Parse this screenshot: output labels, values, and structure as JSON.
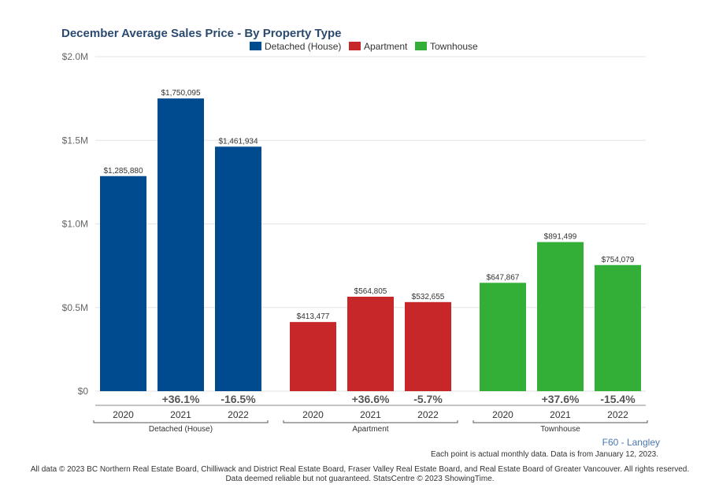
{
  "chart_data": {
    "type": "bar",
    "title": "December Average Sales Price - By Property Type",
    "xlabel": "",
    "ylabel": "",
    "ylim": [
      0,
      2000000
    ],
    "yticks": [
      {
        "value": 0,
        "label": "$0"
      },
      {
        "value": 500000,
        "label": "$0.5M"
      },
      {
        "value": 1000000,
        "label": "$1.0M"
      },
      {
        "value": 1500000,
        "label": "$1.5M"
      },
      {
        "value": 2000000,
        "label": "$2.0M"
      }
    ],
    "grid": true,
    "legend_position": "top",
    "categories": [
      "2020",
      "2021",
      "2022"
    ],
    "series": [
      {
        "name": "Detached (House)",
        "color": "#004a8f",
        "values": [
          1285880,
          1750095,
          1461934
        ],
        "value_labels": [
          "$1,285,880",
          "$1,750,095",
          "$1,461,934"
        ],
        "changes": [
          "",
          "+36.1%",
          "-16.5%"
        ]
      },
      {
        "name": "Apartment",
        "color": "#c8272a",
        "values": [
          413477,
          564805,
          532655
        ],
        "value_labels": [
          "$413,477",
          "$564,805",
          "$532,655"
        ],
        "changes": [
          "",
          "+36.6%",
          "-5.7%"
        ]
      },
      {
        "name": "Townhouse",
        "color": "#33ae37",
        "values": [
          647867,
          891499,
          754079
        ],
        "value_labels": [
          "$647,867",
          "$891,499",
          "$754,079"
        ],
        "changes": [
          "",
          "+37.6%",
          "-15.4%"
        ]
      }
    ]
  },
  "footer": {
    "region": "F60 - Langley",
    "note": "Each point is actual monthly data. Data is from January 12, 2023.",
    "copyright_line1": "All data © 2023 BC Northern Real Estate Board, Chilliwack and District Real Estate Board, Fraser Valley Real Estate Board, and Real Estate Board of Greater Vancouver. All rights reserved.",
    "copyright_line2": "Data deemed reliable but not guaranteed. StatsCentre © 2023 ShowingTime."
  }
}
